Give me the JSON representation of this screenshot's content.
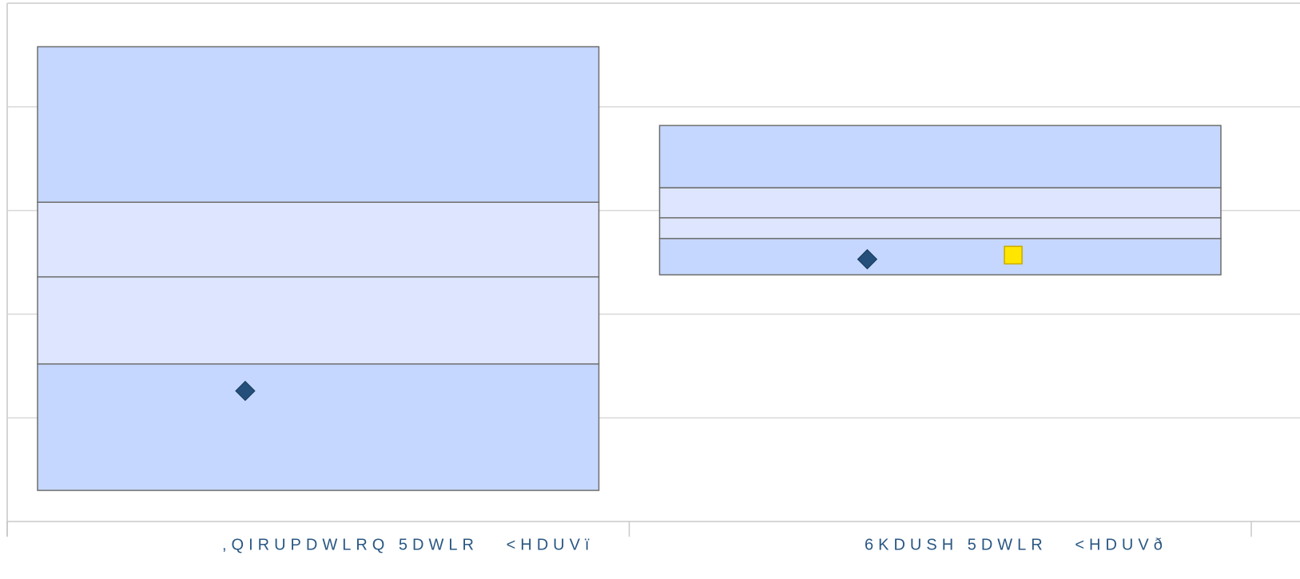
{
  "chart_data": {
    "type": "box",
    "categories": [
      ",QIRUPDWLRQ 5DWLR   <HDUVï",
      "6KDUSH 5DWLR   <HDUVð"
    ],
    "bands": [
      [
        0.3,
        1.52,
        2.36,
        3.08,
        4.58
      ],
      [
        2.38,
        2.73,
        2.93,
        3.22,
        3.82
      ]
    ],
    "band_colors": [
      "#c5d7fe",
      "#dde6fe",
      "#dde6fe",
      "#c5d7fe"
    ],
    "points": [
      1.26,
      2.53
    ],
    "point_color": "#234f7a",
    "markers": [
      null,
      2.57
    ],
    "marker_color": "#ffe600",
    "ylim": [
      0,
      5
    ],
    "yticks": [
      0,
      1,
      2,
      3,
      4,
      5
    ],
    "grid": true
  }
}
